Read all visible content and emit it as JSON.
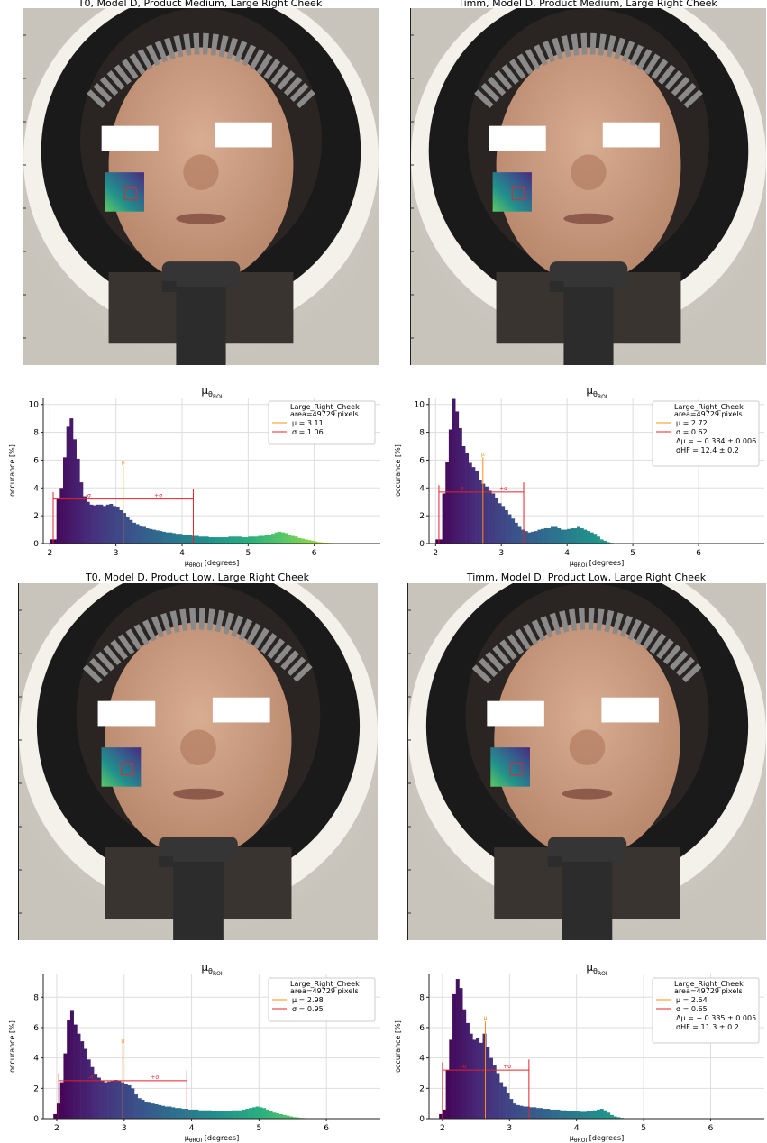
{
  "colors": {
    "axis": "#222222",
    "grid": "#dddddd",
    "mean_line": "#ff8c1a",
    "sigma_line": "#e8202a",
    "viridis": [
      "#440154",
      "#472d7b",
      "#3b528b",
      "#2c728e",
      "#21918c",
      "#28ae80",
      "#5ec962",
      "#addc30"
    ],
    "photo_bg": "#1a1a1a",
    "ring": "#f4f1ea",
    "skin": "#c79a7e",
    "hair": "#2a2522",
    "mask": "#ffffff"
  },
  "icons": {
    "face_photo": "face-photo",
    "roi_inset": "roi-heatmap-inset",
    "censor_bar": "censor-bar"
  },
  "panels": [
    {
      "title": "T0, Model D, Product Medium, Large Right Cheek",
      "chart_data": {
        "type": "bar",
        "title": "μθROI",
        "xlabel": "μθROI [degrees]",
        "ylabel": "occurance [%]",
        "xlim": [
          1.9,
          7.0
        ],
        "ylim": [
          0,
          10.5
        ],
        "xticks": [
          2,
          3,
          4,
          5,
          6
        ],
        "yticks": [
          0,
          2,
          4,
          6,
          8,
          10
        ],
        "grid": true,
        "legend_position": "top-right",
        "legend": [
          "Large_Right_Cheek",
          "area=49729 pixels",
          "μ = 3.11",
          "σ = 1.06"
        ],
        "annotations": [
          "μ",
          "-σ",
          "+σ"
        ],
        "bin_start": 2.0,
        "bin_width": 0.05,
        "values": [
          0.3,
          0.3,
          3.2,
          4.0,
          6.2,
          8.4,
          9.0,
          7.5,
          6.1,
          4.4,
          3.4,
          3.0,
          2.8,
          2.75,
          2.8,
          2.8,
          2.7,
          2.8,
          2.85,
          2.7,
          2.6,
          2.4,
          2.2,
          1.9,
          1.7,
          1.5,
          1.4,
          1.3,
          1.2,
          1.1,
          1.05,
          1.0,
          0.95,
          0.9,
          0.85,
          0.8,
          0.8,
          0.75,
          0.7,
          0.7,
          0.65,
          0.6,
          0.6,
          0.55,
          0.55,
          0.5,
          0.5,
          0.5,
          0.45,
          0.45,
          0.45,
          0.45,
          0.45,
          0.45,
          0.5,
          0.5,
          0.5,
          0.5,
          0.45,
          0.45,
          0.5,
          0.5,
          0.5,
          0.55,
          0.55,
          0.6,
          0.6,
          0.7,
          0.8,
          0.85,
          0.8,
          0.75,
          0.65,
          0.55,
          0.5,
          0.4,
          0.35,
          0.3,
          0.25,
          0.2,
          0.15,
          0.1,
          0.08,
          0.06,
          0.05,
          0.04,
          0.03,
          0.02,
          0.02,
          0.01
        ],
        "mean": 3.11,
        "sigma": 1.06,
        "mu_line_top": 5.6,
        "sigma_bar_y": 3.2,
        "sigma_low_x": 2.05
      }
    },
    {
      "title": "Timm, Model D, Product Medium, Large Right Cheek",
      "chart_data": {
        "type": "bar",
        "title": "μθROI",
        "xlabel": "μθROI [degrees]",
        "ylabel": "occurance [%]",
        "xlim": [
          1.9,
          7.0
        ],
        "ylim": [
          0,
          10.5
        ],
        "xticks": [
          2,
          3,
          4,
          5,
          6
        ],
        "yticks": [
          0,
          2,
          4,
          6,
          8,
          10
        ],
        "grid": true,
        "legend_position": "top-right",
        "legend": [
          "Large_Right_Cheek",
          "area=49729 pixels",
          "μ = 2.72",
          "σ = 0.62",
          "Δμ = − 0.384 ± 0.006",
          "σHF = 12.4 ± 0.2"
        ],
        "annotations": [
          "μ",
          "-σ",
          "+σ"
        ],
        "bin_start": 2.0,
        "bin_width": 0.05,
        "values": [
          0.3,
          0.3,
          3.6,
          5.9,
          8.2,
          10.4,
          9.5,
          8.3,
          7.0,
          6.5,
          5.8,
          5.5,
          5.2,
          4.6,
          4.3,
          4.1,
          3.8,
          3.6,
          3.3,
          2.9,
          2.7,
          2.4,
          2.1,
          1.8,
          1.5,
          1.2,
          1.0,
          0.9,
          0.8,
          0.85,
          0.9,
          1.0,
          1.05,
          1.1,
          1.1,
          1.2,
          1.2,
          1.1,
          1.0,
          1.0,
          1.05,
          1.1,
          1.1,
          1.2,
          1.1,
          1.0,
          0.9,
          0.8,
          0.7,
          0.5,
          0.3,
          0.2,
          0.1,
          0.05,
          0.03,
          0.02,
          0.01
        ],
        "mean": 2.72,
        "sigma": 0.62,
        "mu_line_top": 6.2,
        "sigma_bar_y": 3.7,
        "sigma_low_x": 2.05
      }
    },
    {
      "title": "T0, Model D, Product Low, Large Right Cheek",
      "chart_data": {
        "type": "bar",
        "title": "μθROI",
        "xlabel": "μθROI [degrees]",
        "ylabel": "occurance [%]",
        "xlim": [
          1.8,
          6.8
        ],
        "ylim": [
          0,
          9.5
        ],
        "xticks": [
          2,
          3,
          4,
          5,
          6
        ],
        "yticks": [
          0,
          2,
          4,
          6,
          8
        ],
        "grid": true,
        "legend_position": "top-right",
        "legend": [
          "Large_Right_Cheek",
          "area=49729 pixels",
          "μ = 2.98",
          "σ = 0.95"
        ],
        "annotations": [
          "μ",
          "-σ",
          "+σ"
        ],
        "bin_start": 1.95,
        "bin_width": 0.05,
        "values": [
          0.3,
          1.0,
          2.4,
          4.3,
          6.5,
          7.1,
          6.2,
          5.6,
          5.1,
          4.6,
          3.9,
          3.4,
          2.9,
          2.7,
          2.5,
          2.4,
          2.45,
          2.5,
          2.55,
          2.5,
          2.4,
          2.3,
          2.2,
          2.0,
          1.6,
          1.35,
          1.25,
          1.1,
          1.05,
          1.0,
          0.95,
          0.9,
          0.85,
          0.8,
          0.8,
          0.75,
          0.7,
          0.7,
          0.65,
          0.65,
          0.6,
          0.6,
          0.6,
          0.55,
          0.55,
          0.55,
          0.55,
          0.5,
          0.5,
          0.5,
          0.5,
          0.5,
          0.5,
          0.55,
          0.55,
          0.55,
          0.6,
          0.65,
          0.7,
          0.75,
          0.8,
          0.75,
          0.7,
          0.6,
          0.5,
          0.4,
          0.35,
          0.3,
          0.25,
          0.2,
          0.15,
          0.1,
          0.08,
          0.05,
          0.04,
          0.03,
          0.02,
          0.01
        ],
        "mean": 2.98,
        "sigma": 0.95,
        "mu_line_top": 4.9,
        "sigma_bar_y": 2.5,
        "sigma_low_x": 2.03
      }
    },
    {
      "title": "Timm, Model D, Product Low, Large Right Cheek",
      "chart_data": {
        "type": "bar",
        "title": "μθROI",
        "xlabel": "μθROI [degrees]",
        "ylabel": "occurance [%]",
        "xlim": [
          1.8,
          6.8
        ],
        "ylim": [
          0,
          9.5
        ],
        "xticks": [
          2,
          3,
          4,
          5,
          6
        ],
        "yticks": [
          0,
          2,
          4,
          6,
          8
        ],
        "grid": true,
        "legend_position": "top-right",
        "legend": [
          "Large_Right_Cheek",
          "area=49729 pixels",
          "μ = 2.64",
          "σ = 0.65",
          "Δμ = − 0.335 ± 0.005",
          "σHF = 11.3 ± 0.2"
        ],
        "annotations": [
          "μ",
          "-σ",
          "+σ"
        ],
        "bin_start": 1.95,
        "bin_width": 0.05,
        "values": [
          0.3,
          0.6,
          3.2,
          5.2,
          8.2,
          9.2,
          8.6,
          7.2,
          6.3,
          5.6,
          5.2,
          5.3,
          5.0,
          5.6,
          4.7,
          4.0,
          3.5,
          3.0,
          2.4,
          2.1,
          1.7,
          1.3,
          1.0,
          0.9,
          0.85,
          0.8,
          0.8,
          0.75,
          0.75,
          0.7,
          0.7,
          0.65,
          0.65,
          0.6,
          0.6,
          0.6,
          0.55,
          0.55,
          0.5,
          0.5,
          0.5,
          0.5,
          0.45,
          0.45,
          0.5,
          0.5,
          0.55,
          0.6,
          0.65,
          0.55,
          0.4,
          0.25,
          0.15,
          0.1,
          0.05,
          0.03,
          0.02,
          0.01
        ],
        "mean": 2.64,
        "sigma": 0.65,
        "mu_line_top": 6.4,
        "sigma_bar_y": 3.2,
        "sigma_low_x": 2.0
      }
    }
  ]
}
